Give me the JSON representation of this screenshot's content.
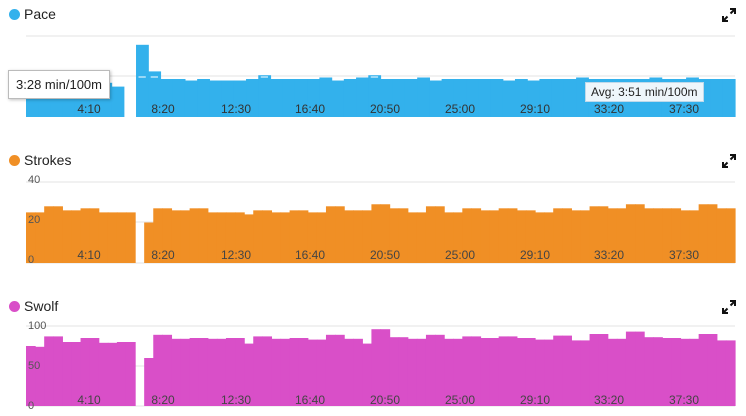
{
  "charts": [
    {
      "key": "pace",
      "title": "Pace",
      "color": "#33b1ec",
      "icon": "expand-icon",
      "avg_label": "Avg: 3:51 min/100m",
      "tooltip": "3:28 min/100m"
    },
    {
      "key": "strokes",
      "title": "Strokes",
      "color": "#f08f25",
      "icon": "expand-icon"
    },
    {
      "key": "swolf",
      "title": "Swolf",
      "color": "#d94fc8",
      "icon": "expand-icon"
    }
  ],
  "chart_data": [
    {
      "type": "area",
      "title": "Pace",
      "unit": "min/100m",
      "x_tick_labels": [
        "4:10",
        "8:20",
        "12:30",
        "16:40",
        "20:50",
        "25:00",
        "29:10",
        "33:20",
        "37:30"
      ],
      "avg": "3:51 min/100m",
      "series": [
        {
          "name": "Pace",
          "values": [
            0.4,
            0.5,
            0.5,
            0.45,
            0.45,
            0.45,
            0.45,
            0.4,
            0,
            0.95,
            0.6,
            0.5,
            0.5,
            0.48,
            0.5,
            0.48,
            0.48,
            0.48,
            0.5,
            0.55,
            0.5,
            0.5,
            0.5,
            0.5,
            0.52,
            0.48,
            0.5,
            0.52,
            0.55,
            0.5,
            0.5,
            0.5,
            0.52,
            0.48,
            0.5,
            0.5,
            0.5,
            0.5,
            0.5,
            0.48,
            0.5,
            0.48,
            0.5,
            0.5,
            0.5,
            0.52,
            0.5,
            0.5,
            0.5,
            0.5,
            0.5,
            0.52,
            0.5,
            0.5,
            0.52,
            0.5,
            0.5,
            0.5
          ]
        }
      ]
    },
    {
      "type": "area",
      "title": "Strokes",
      "y_tick_labels": [
        "40",
        "20",
        "0"
      ],
      "ylim": [
        0,
        40
      ],
      "x_tick_labels": [
        "4:10",
        "8:20",
        "12:30",
        "16:40",
        "20:50",
        "25:00",
        "29:10",
        "33:20",
        "37:30"
      ],
      "series": [
        {
          "name": "Strokes",
          "values": [
            25,
            25,
            28,
            28,
            26,
            26,
            27,
            27,
            25,
            25,
            25,
            25,
            0,
            20,
            27,
            27,
            26,
            26,
            27,
            27,
            25,
            25,
            25,
            25,
            24,
            26,
            26,
            25,
            25,
            26,
            26,
            25,
            25,
            28,
            28,
            26,
            26,
            26,
            29,
            29,
            27,
            27,
            25,
            25,
            28,
            28,
            25,
            25,
            27,
            27,
            26,
            26,
            27,
            27,
            26,
            26,
            25,
            25,
            27,
            27,
            26,
            26,
            28,
            28,
            27,
            27,
            29,
            29,
            27,
            27,
            27,
            27,
            26,
            26,
            29,
            29,
            27,
            27
          ]
        }
      ]
    },
    {
      "type": "area",
      "title": "Swolf",
      "y_tick_labels": [
        "100",
        "50",
        "0"
      ],
      "ylim": [
        0,
        100
      ],
      "x_tick_labels": [
        "4:10",
        "8:20",
        "12:30",
        "16:40",
        "20:50",
        "25:00",
        "29:10",
        "33:20",
        "37:30"
      ],
      "series": [
        {
          "name": "Swolf",
          "values": [
            75,
            74,
            87,
            87,
            80,
            80,
            85,
            85,
            79,
            79,
            80,
            80,
            0,
            60,
            89,
            89,
            84,
            84,
            85,
            85,
            84,
            84,
            85,
            85,
            78,
            87,
            87,
            84,
            84,
            85,
            85,
            83,
            83,
            89,
            89,
            84,
            84,
            78,
            96,
            96,
            86,
            86,
            84,
            84,
            89,
            89,
            84,
            84,
            87,
            87,
            85,
            85,
            87,
            87,
            85,
            85,
            83,
            83,
            88,
            88,
            82,
            82,
            90,
            90,
            84,
            84,
            93,
            93,
            86,
            86,
            85,
            85,
            84,
            84,
            90,
            90,
            82,
            82
          ]
        }
      ]
    }
  ]
}
